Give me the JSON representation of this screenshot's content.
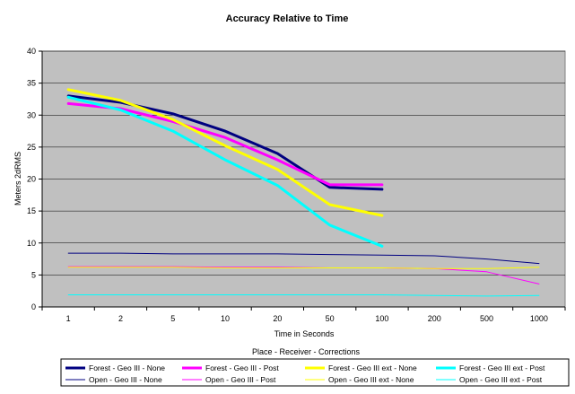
{
  "chart_data": {
    "type": "line",
    "title": "Accuracy Relative to Time",
    "xlabel": "Time in Seconds",
    "ylabel": "Meters 2dRMS",
    "categories": [
      "1",
      "2",
      "5",
      "10",
      "20",
      "50",
      "100",
      "200",
      "500",
      "1000"
    ],
    "ylim": [
      0,
      40
    ],
    "yticks": [
      0,
      5,
      10,
      15,
      20,
      25,
      30,
      35,
      40
    ],
    "grid": true,
    "legend_title": "Place - Receiver - Corrections",
    "legend_position": "bottom",
    "series": [
      {
        "name": "Forest - Geo III - None",
        "color": "#000080",
        "width": "thick",
        "values": [
          33,
          32,
          30.2,
          27.5,
          24,
          18.7,
          18.4,
          null,
          null,
          null
        ]
      },
      {
        "name": "Forest - Geo III - Post",
        "color": "#ff00ff",
        "width": "thick",
        "values": [
          31.8,
          31,
          29,
          26.5,
          23,
          19.1,
          19.1,
          null,
          null,
          null
        ]
      },
      {
        "name": "Forest - Geo III ext - None",
        "color": "#ffff00",
        "width": "thick",
        "values": [
          34,
          32.3,
          29.3,
          25.2,
          21.5,
          16,
          14.3,
          null,
          null,
          null
        ]
      },
      {
        "name": "Forest - Geo III ext - Post",
        "color": "#00ffff",
        "width": "thick",
        "values": [
          32.8,
          30.8,
          27.5,
          23,
          19,
          12.8,
          9.5,
          null,
          null,
          null
        ]
      },
      {
        "name": "Open - Geo III - None",
        "color": "#000080",
        "width": "thin",
        "values": [
          8.4,
          8.4,
          8.3,
          8.3,
          8.3,
          8.2,
          8.1,
          8,
          7.5,
          6.8
        ]
      },
      {
        "name": "Open - Geo III - Post",
        "color": "#ff00ff",
        "width": "thin",
        "values": [
          6.3,
          6.3,
          6.3,
          6.2,
          6.2,
          6.1,
          6.1,
          6,
          5.5,
          3.6
        ]
      },
      {
        "name": "Open - Geo III ext - None",
        "color": "#ffff00",
        "width": "thin",
        "values": [
          6.2,
          6.2,
          6.2,
          6.1,
          6.1,
          6.1,
          6.1,
          6,
          6,
          6.2
        ]
      },
      {
        "name": "Open - Geo III ext - Post",
        "color": "#00ffff",
        "width": "thin",
        "values": [
          1.9,
          1.9,
          1.9,
          1.9,
          1.9,
          1.9,
          1.9,
          1.8,
          1.7,
          1.8
        ]
      }
    ]
  }
}
